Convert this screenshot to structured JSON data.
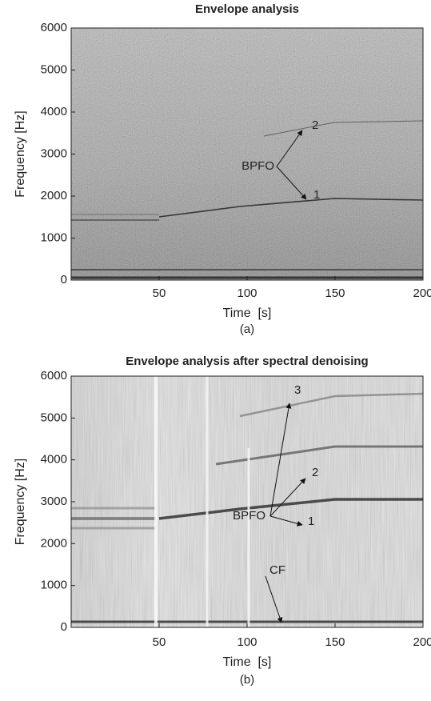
{
  "chart_data": [
    {
      "type": "spectrogram",
      "title": "Envelope analysis",
      "xlabel": "Time  [s]",
      "ylabel": "Frequency [Hz]",
      "caption": "(a)",
      "xlim": [
        0,
        200
      ],
      "xticks": [
        50,
        100,
        150,
        200
      ],
      "ylim": [
        0,
        6000
      ],
      "yticks": [
        0,
        1000,
        2000,
        3000,
        4000,
        5000,
        6000
      ],
      "annotations": [
        "BPFO",
        "1",
        "2"
      ]
    },
    {
      "type": "spectrogram",
      "title": "Envelope analysis after spectral denoising",
      "xlabel": "Time  [s]",
      "ylabel": "Frequency [Hz]",
      "caption": "(b)",
      "xlim": [
        0,
        200
      ],
      "xticks": [
        50,
        100,
        150,
        200
      ],
      "ylim": [
        0,
        6000
      ],
      "yticks": [
        0,
        1000,
        2000,
        3000,
        4000,
        5000,
        6000
      ],
      "annotations": [
        "BPFO",
        "1",
        "2",
        "3",
        "CF"
      ]
    }
  ]
}
